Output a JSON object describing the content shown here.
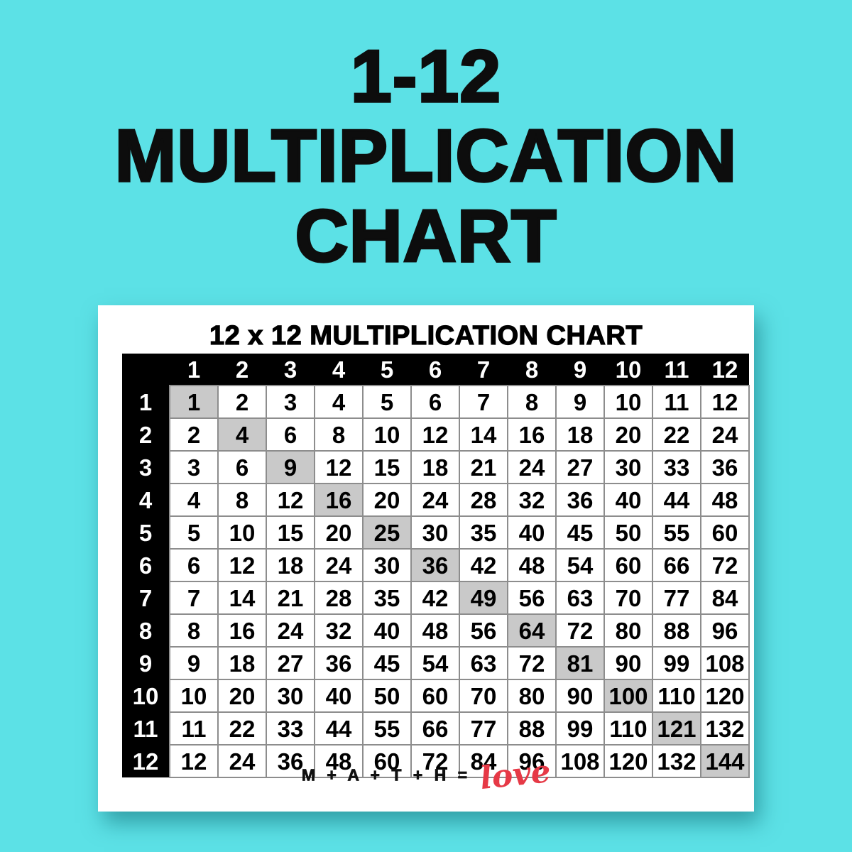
{
  "colors": {
    "background": "#5CE1E6",
    "table_header_bg": "#000000",
    "table_header_text": "#FFFFFF",
    "diagonal_cell_bg": "#C9C9C9",
    "cell_border": "#8D8D8D",
    "love_red": "#E63946",
    "text_black": "#0D0D0D"
  },
  "hero": {
    "line1": "1-12",
    "line2": "MULTIPLICATION",
    "line3": "CHART"
  },
  "card": {
    "title": "12 x 12 MULTIPLICATION CHART",
    "footer": {
      "math_text": "M + A + T + H =",
      "love_text": "love"
    },
    "table": {
      "col_headers": [
        "1",
        "2",
        "3",
        "4",
        "5",
        "6",
        "7",
        "8",
        "9",
        "10",
        "11",
        "12"
      ],
      "row_headers": [
        "1",
        "2",
        "3",
        "4",
        "5",
        "6",
        "7",
        "8",
        "9",
        "10",
        "11",
        "12"
      ],
      "rows": [
        [
          1,
          2,
          3,
          4,
          5,
          6,
          7,
          8,
          9,
          10,
          11,
          12
        ],
        [
          2,
          4,
          6,
          8,
          10,
          12,
          14,
          16,
          18,
          20,
          22,
          24
        ],
        [
          3,
          6,
          9,
          12,
          15,
          18,
          21,
          24,
          27,
          30,
          33,
          36
        ],
        [
          4,
          8,
          12,
          16,
          20,
          24,
          28,
          32,
          36,
          40,
          44,
          48
        ],
        [
          5,
          10,
          15,
          20,
          25,
          30,
          35,
          40,
          45,
          50,
          55,
          60
        ],
        [
          6,
          12,
          18,
          24,
          30,
          36,
          42,
          48,
          54,
          60,
          66,
          72
        ],
        [
          7,
          14,
          21,
          28,
          35,
          42,
          49,
          56,
          63,
          70,
          77,
          84
        ],
        [
          8,
          16,
          24,
          32,
          40,
          48,
          56,
          64,
          72,
          80,
          88,
          96
        ],
        [
          9,
          18,
          27,
          36,
          45,
          54,
          63,
          72,
          81,
          90,
          99,
          108
        ],
        [
          10,
          20,
          30,
          40,
          50,
          60,
          70,
          80,
          90,
          100,
          110,
          120
        ],
        [
          11,
          22,
          33,
          44,
          55,
          66,
          77,
          88,
          99,
          110,
          121,
          132
        ],
        [
          12,
          24,
          36,
          48,
          60,
          72,
          84,
          96,
          108,
          120,
          132,
          144
        ]
      ]
    }
  }
}
